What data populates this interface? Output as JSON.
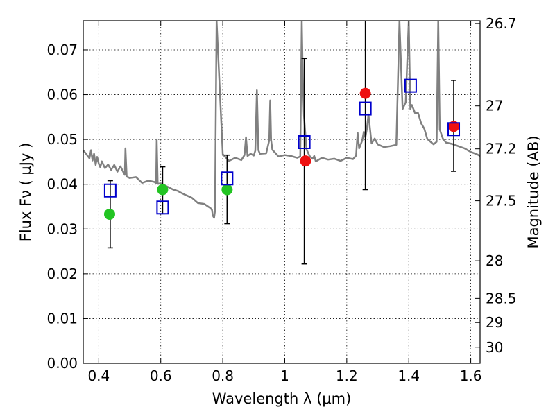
{
  "chart_data": {
    "type": "scatter",
    "xlabel": "Wavelength  λ (μm)",
    "ylabel": "Flux  Fν  ( μJy )",
    "y2label": "Magnitude (AB)",
    "xlim": [
      0.35,
      1.63
    ],
    "ylim": [
      0.0,
      0.0765
    ],
    "grid": true,
    "x_ticks": [
      {
        "value": 0.4,
        "label": "0.4"
      },
      {
        "value": 0.6,
        "label": "0.6"
      },
      {
        "value": 0.8,
        "label": "0.8"
      },
      {
        "value": 1.0,
        "label": "1"
      },
      {
        "value": 1.2,
        "label": "1.2"
      },
      {
        "value": 1.4,
        "label": "1.4"
      },
      {
        "value": 1.6,
        "label": "1.6"
      }
    ],
    "y_ticks": [
      {
        "value": 0.0,
        "label": "0.00"
      },
      {
        "value": 0.01,
        "label": "0.01"
      },
      {
        "value": 0.02,
        "label": "0.02"
      },
      {
        "value": 0.03,
        "label": "0.03"
      },
      {
        "value": 0.04,
        "label": "0.04"
      },
      {
        "value": 0.05,
        "label": "0.05"
      },
      {
        "value": 0.06,
        "label": "0.06"
      },
      {
        "value": 0.07,
        "label": "0.07"
      }
    ],
    "mag_ticks": [
      {
        "flux": 0.0759,
        "label": "26.7"
      },
      {
        "flux": 0.0575,
        "label": "27"
      },
      {
        "flux": 0.0479,
        "label": "27.2"
      },
      {
        "flux": 0.0363,
        "label": "27.5"
      },
      {
        "flux": 0.0229,
        "label": "28"
      },
      {
        "flux": 0.0145,
        "label": "28.5"
      },
      {
        "flux": 0.0091,
        "label": "29"
      },
      {
        "flux": 0.0036,
        "label": "30"
      }
    ],
    "series": [
      {
        "kind": "line",
        "color": "#808080",
        "x": [
          0.35,
          0.36,
          0.37,
          0.375,
          0.38,
          0.385,
          0.39,
          0.395,
          0.4,
          0.405,
          0.41,
          0.42,
          0.43,
          0.44,
          0.45,
          0.46,
          0.47,
          0.48,
          0.484,
          0.486,
          0.49,
          0.5,
          0.52,
          0.54,
          0.56,
          0.58,
          0.585,
          0.587,
          0.59,
          0.6,
          0.62,
          0.64,
          0.656,
          0.66,
          0.68,
          0.7,
          0.72,
          0.74,
          0.755,
          0.76,
          0.765,
          0.768,
          0.772,
          0.775,
          0.78,
          0.8,
          0.82,
          0.84,
          0.86,
          0.87,
          0.875,
          0.88,
          0.89,
          0.9,
          0.905,
          0.91,
          0.915,
          0.92,
          0.94,
          0.95,
          0.953,
          0.956,
          0.96,
          0.98,
          1.0,
          1.02,
          1.04,
          1.05,
          1.055,
          1.058,
          1.062,
          1.07,
          1.08,
          1.09,
          1.095,
          1.1,
          1.12,
          1.14,
          1.16,
          1.18,
          1.2,
          1.22,
          1.23,
          1.235,
          1.24,
          1.25,
          1.255,
          1.26,
          1.265,
          1.27,
          1.28,
          1.29,
          1.3,
          1.32,
          1.34,
          1.36,
          1.37,
          1.38,
          1.39,
          1.4,
          1.405,
          1.41,
          1.42,
          1.43,
          1.44,
          1.45,
          1.46,
          1.48,
          1.49,
          1.495,
          1.5,
          1.51,
          1.52,
          1.54,
          1.56,
          1.58,
          1.6,
          1.62,
          1.63
        ],
        "y": [
          0.0476,
          0.0467,
          0.0458,
          0.0476,
          0.0453,
          0.0468,
          0.0443,
          0.0461,
          0.0446,
          0.0438,
          0.0451,
          0.0436,
          0.0444,
          0.0432,
          0.0443,
          0.0428,
          0.044,
          0.0426,
          0.0421,
          0.048,
          0.0417,
          0.0414,
          0.0416,
          0.0403,
          0.0408,
          0.0405,
          0.0402,
          0.05,
          0.0401,
          0.0402,
          0.0395,
          0.0388,
          0.0385,
          0.0383,
          0.0376,
          0.037,
          0.0358,
          0.0356,
          0.0349,
          0.0347,
          0.0343,
          0.033,
          0.0325,
          0.034,
          0.0765,
          0.0467,
          0.0452,
          0.0459,
          0.0454,
          0.0465,
          0.0505,
          0.0463,
          0.0468,
          0.0464,
          0.0475,
          0.061,
          0.0476,
          0.0468,
          0.0469,
          0.0498,
          0.0587,
          0.0498,
          0.0477,
          0.0462,
          0.0465,
          0.0463,
          0.0459,
          0.0462,
          0.0765,
          0.064,
          0.0552,
          0.0478,
          0.0463,
          0.0457,
          0.0463,
          0.0451,
          0.0459,
          0.0455,
          0.0457,
          0.0452,
          0.0459,
          0.0456,
          0.0464,
          0.0515,
          0.048,
          0.0498,
          0.0517,
          0.0505,
          0.0524,
          0.0556,
          0.0491,
          0.0502,
          0.0489,
          0.0483,
          0.0485,
          0.0488,
          0.0765,
          0.0568,
          0.0583,
          0.0765,
          0.0568,
          0.0577,
          0.0559,
          0.0559,
          0.0536,
          0.0524,
          0.0501,
          0.0489,
          0.0495,
          0.0765,
          0.0522,
          0.0502,
          0.0493,
          0.049,
          0.0485,
          0.048,
          0.0472,
          0.0467,
          0.0463
        ]
      },
      {
        "kind": "errorbar",
        "color": "#000000",
        "points": [
          {
            "x": 0.437,
            "low": 0.0258,
            "high": 0.0408
          },
          {
            "x": 0.606,
            "low": 0.0334,
            "high": 0.0439
          },
          {
            "x": 0.814,
            "low": 0.0312,
            "high": 0.0465
          },
          {
            "x": 1.063,
            "low": 0.0222,
            "high": 0.0681
          },
          {
            "x": 1.26,
            "low": 0.0388,
            "high": 0.0765
          },
          {
            "x": 1.545,
            "low": 0.0429,
            "high": 0.0632
          }
        ]
      },
      {
        "kind": "points",
        "marker": "circle",
        "color": "#22c422",
        "x": [
          0.435,
          0.606,
          0.814
        ],
        "y": [
          0.0333,
          0.0388,
          0.0388
        ]
      },
      {
        "kind": "points",
        "marker": "circle",
        "color": "#ee1111",
        "x": [
          1.067,
          1.26,
          1.545
        ],
        "y": [
          0.0452,
          0.0603,
          0.0529
        ]
      },
      {
        "kind": "points",
        "marker": "square",
        "color": "#0000cc",
        "x": [
          0.437,
          0.606,
          0.814,
          1.063,
          1.26,
          1.406,
          1.545
        ],
        "y": [
          0.0386,
          0.0348,
          0.0413,
          0.0494,
          0.0569,
          0.062,
          0.0523
        ]
      }
    ]
  }
}
